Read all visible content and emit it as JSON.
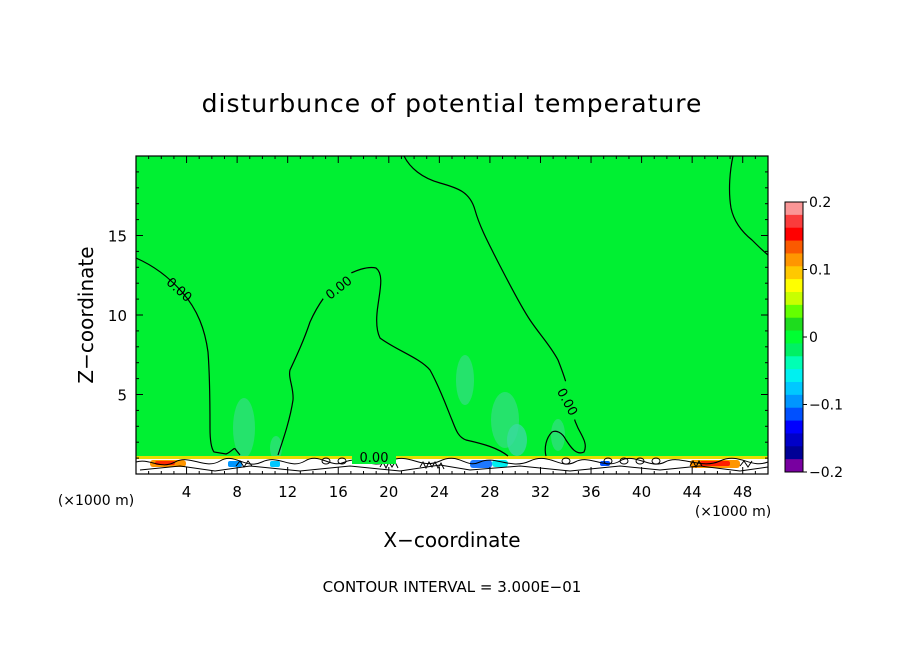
{
  "chart_data": {
    "type": "heatmap",
    "title": "disturbunce of potential temperature",
    "xlabel": "X−coordinate",
    "ylabel": "Z−coordinate",
    "x_unit_left": "(×1000 m)",
    "x_unit_right": "(×1000 m)",
    "xlim": [
      0,
      50
    ],
    "ylim": [
      0,
      20
    ],
    "x_ticks": [
      4,
      8,
      12,
      16,
      20,
      24,
      28,
      32,
      36,
      40,
      44,
      48
    ],
    "y_ticks": [
      5,
      10,
      15
    ],
    "colorbar": {
      "vmin": -0.2,
      "vmax": 0.2,
      "ticks": [
        0.2,
        0.1,
        0,
        -0.1,
        -0.2
      ],
      "tick_labels": [
        "0.2",
        "0.1",
        "0",
        "−0.1",
        "−0.2"
      ],
      "colors": [
        "#fa9696",
        "#fa3c3c",
        "#ff0000",
        "#fa5a00",
        "#ff9600",
        "#ffc800",
        "#ffff00",
        "#c8ff00",
        "#64ff00",
        "#1edc1e",
        "#00ff32",
        "#00f064",
        "#00ffb4",
        "#00f0f0",
        "#00c8ff",
        "#0096ff",
        "#0050ff",
        "#0000ff",
        "#0000c8",
        "#000096",
        "#7800a0"
      ]
    },
    "contour_labels": [
      "0.00",
      "0.00",
      "0.00",
      "0.00"
    ],
    "contour_interval_text": "CONTOUR INTERVAL = 3.000E−01",
    "background_value": 0.01
  }
}
